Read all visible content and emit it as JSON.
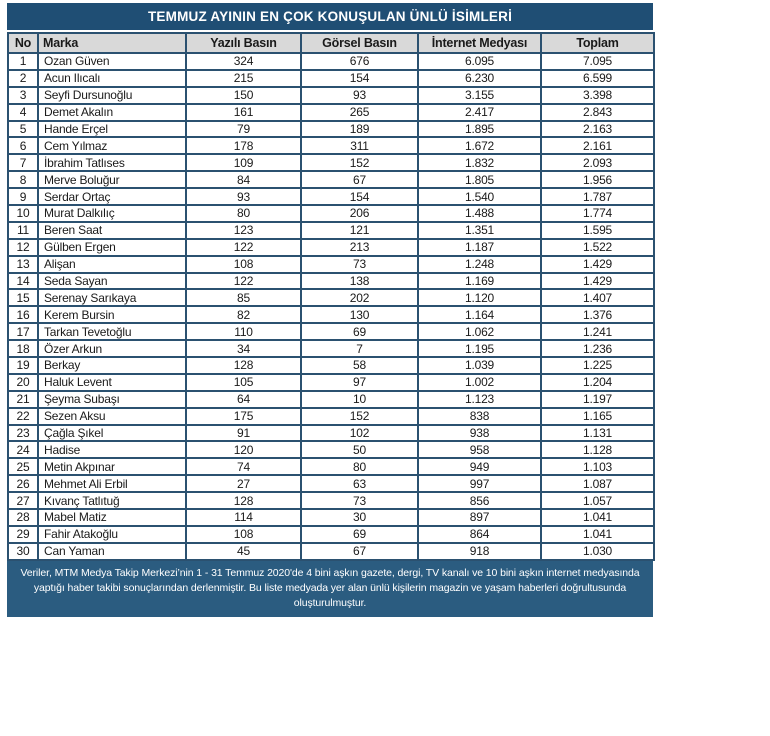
{
  "colors": {
    "title_bg": "#1F4E74",
    "header_bg": "#D9D9D9",
    "border": "#2B5170",
    "footer_bg": "#2B5C80",
    "title_text": "#FFFFFF",
    "cell_text": "#1A1A1A"
  },
  "chart_data": {
    "type": "table",
    "title": "TEMMUZ AYININ EN ÇOK KONUŞULAN ÜNLÜ İSİMLERİ",
    "columns": [
      "No",
      "Marka",
      "Yazılı Basın",
      "Görsel Basın",
      "İnternet Medyası",
      "Toplam"
    ],
    "rows": [
      [
        "1",
        "Ozan Güven",
        "324",
        "676",
        "6.095",
        "7.095"
      ],
      [
        "2",
        "Acun Ilıcalı",
        "215",
        "154",
        "6.230",
        "6.599"
      ],
      [
        "3",
        "Seyfi Dursunoğlu",
        "150",
        "93",
        "3.155",
        "3.398"
      ],
      [
        "4",
        "Demet Akalın",
        "161",
        "265",
        "2.417",
        "2.843"
      ],
      [
        "5",
        "Hande Erçel",
        "79",
        "189",
        "1.895",
        "2.163"
      ],
      [
        "6",
        "Cem Yılmaz",
        "178",
        "311",
        "1.672",
        "2.161"
      ],
      [
        "7",
        "İbrahim Tatlıses",
        "109",
        "152",
        "1.832",
        "2.093"
      ],
      [
        "8",
        "Merve Boluğur",
        "84",
        "67",
        "1.805",
        "1.956"
      ],
      [
        "9",
        "Serdar Ortaç",
        "93",
        "154",
        "1.540",
        "1.787"
      ],
      [
        "10",
        "Murat Dalkılıç",
        "80",
        "206",
        "1.488",
        "1.774"
      ],
      [
        "11",
        "Beren Saat",
        "123",
        "121",
        "1.351",
        "1.595"
      ],
      [
        "12",
        "Gülben Ergen",
        "122",
        "213",
        "1.187",
        "1.522"
      ],
      [
        "13",
        "Alişan",
        "108",
        "73",
        "1.248",
        "1.429"
      ],
      [
        "14",
        "Seda Sayan",
        "122",
        "138",
        "1.169",
        "1.429"
      ],
      [
        "15",
        "Serenay Sarıkaya",
        "85",
        "202",
        "1.120",
        "1.407"
      ],
      [
        "16",
        "Kerem Bursin",
        "82",
        "130",
        "1.164",
        "1.376"
      ],
      [
        "17",
        "Tarkan Tevetoğlu",
        "110",
        "69",
        "1.062",
        "1.241"
      ],
      [
        "18",
        "Özer Arkun",
        "34",
        "7",
        "1.195",
        "1.236"
      ],
      [
        "19",
        "Berkay",
        "128",
        "58",
        "1.039",
        "1.225"
      ],
      [
        "20",
        "Haluk Levent",
        "105",
        "97",
        "1.002",
        "1.204"
      ],
      [
        "21",
        "Şeyma Subaşı",
        "64",
        "10",
        "1.123",
        "1.197"
      ],
      [
        "22",
        "Sezen Aksu",
        "175",
        "152",
        "838",
        "1.165"
      ],
      [
        "23",
        "Çağla Şıkel",
        "91",
        "102",
        "938",
        "1.131"
      ],
      [
        "24",
        "Hadise",
        "120",
        "50",
        "958",
        "1.128"
      ],
      [
        "25",
        "Metin Akpınar",
        "74",
        "80",
        "949",
        "1.103"
      ],
      [
        "26",
        "Mehmet Ali Erbil",
        "27",
        "63",
        "997",
        "1.087"
      ],
      [
        "27",
        "Kıvanç Tatlıtuğ",
        "128",
        "73",
        "856",
        "1.057"
      ],
      [
        "28",
        "Mabel Matiz",
        "114",
        "30",
        "897",
        "1.041"
      ],
      [
        "29",
        "Fahir Atakoğlu",
        "108",
        "69",
        "864",
        "1.041"
      ],
      [
        "30",
        "Can Yaman",
        "45",
        "67",
        "918",
        "1.030"
      ]
    ],
    "footnote_lines": [
      "Veriler, MTM Medya Takip Merkezi’nin 1 - 31 Temmuz 2020'de 4 bini aşkın gazete, dergi, TV kanalı ve 10 bini aşkın internet medyasında",
      "yaptığı haber takibi sonuçlarından derlenmiştir.  Bu liste medyada yer alan ünlü kişilerin magazin ve yaşam haberleri doğrultusunda",
      "oluşturulmuştur."
    ]
  }
}
